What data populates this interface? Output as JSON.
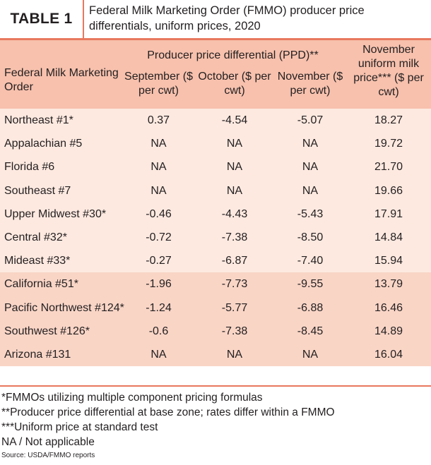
{
  "title": {
    "label": "TABLE 1",
    "text": "Federal Milk Marketing Order (FMMO) producer price differentials, uniform prices, 2020"
  },
  "header": {
    "order_col": "Federal Milk Marketing Order",
    "ppd_group": "Producer price differential (PPD)**",
    "september": "September ($ per cwt)",
    "october": "October ($ per cwt)",
    "november": "November ($ per cwt)",
    "uniform": "November uniform milk price*** ($ per cwt)"
  },
  "rows": [
    {
      "order": "Northeast #1*",
      "september": "0.37",
      "october": "-4.54",
      "november": "-5.07",
      "uniform": "18.27"
    },
    {
      "order": "Appalachian #5",
      "september": "NA",
      "october": "NA",
      "november": "NA",
      "uniform": "19.72"
    },
    {
      "order": "Florida #6",
      "september": "NA",
      "october": "NA",
      "november": "NA",
      "uniform": "21.70"
    },
    {
      "order": "Southeast #7",
      "september": "NA",
      "october": "NA",
      "november": "NA",
      "uniform": "19.66"
    },
    {
      "order": "Upper Midwest #30*",
      "september": "-0.46",
      "october": "-4.43",
      "november": "-5.43",
      "uniform": "17.91"
    },
    {
      "order": "Central #32*",
      "september": "-0.72",
      "october": "-7.38",
      "november": "-8.50",
      "uniform": "14.84"
    },
    {
      "order": "Mideast #33*",
      "september": "-0.27",
      "october": "-6.87",
      "november": "-7.40",
      "uniform": "15.94"
    },
    {
      "order": "California #51*",
      "september": "-1.96",
      "october": "-7.73",
      "november": "-9.55",
      "uniform": "13.79"
    },
    {
      "order": "Pacific Northwest #124*",
      "september": "-1.24",
      "october": "-5.77",
      "november": "-6.88",
      "uniform": "16.46"
    },
    {
      "order": "Southwest #126*",
      "september": "-0.6",
      "october": "-7.38",
      "november": "-8.45",
      "uniform": "14.89"
    },
    {
      "order": "Arizona #131",
      "september": "NA",
      "october": "NA",
      "november": "NA",
      "uniform": "16.04"
    }
  ],
  "footnotes": [
    "*FMMOs utilizing multiple component pricing formulas",
    "**Producer price differential at base zone; rates differ within a FMMO",
    "***Uniform price at standard test",
    "NA / Not applicable"
  ],
  "source": "Source: USDA/FMMO reports",
  "colors": {
    "accent": "#e8785e",
    "header_bg": "#f7c1ad",
    "row_light": "#fde9e0",
    "row_dark": "#f9d5c6"
  }
}
